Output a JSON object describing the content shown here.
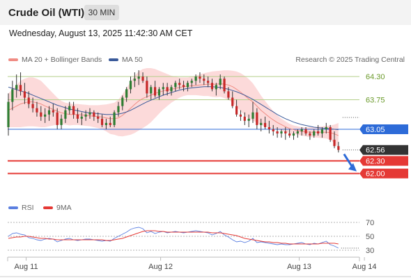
{
  "header": {
    "title": "Crude Oil (WTI)",
    "timeframe": "30 MIN",
    "datetime": "Wednesday, August 13, 2025 11:42:30 AM CET"
  },
  "legend": {
    "ma20_label": "MA 20 + Bollinger Bands",
    "ma50_label": "MA 50",
    "copyright": "Research © 2025 Trading Central",
    "rsi_label": "RSI",
    "rsi_ma_label": "9MA"
  },
  "colors": {
    "ma20": "#f08c84",
    "ma50": "#3a5a9a",
    "band_fill": "#fbd4d4",
    "resistance": "#b4cf8a",
    "pivot": "#2d6bd8",
    "support": "#e53935",
    "last_price": "#333333",
    "rsi": "#5b7fe0",
    "rsi_ma": "#e53935",
    "arrow": "#2d6bd8"
  },
  "chart_data": [
    {
      "type": "candlestick",
      "x_labels": [
        "Aug 11",
        "Aug 12",
        "Aug 13",
        "Aug 14"
      ],
      "x_label_positions": [
        3,
        36,
        70,
        86
      ],
      "ylim": [
        61.5,
        64.55
      ],
      "ohlc": [
        [
          63.1,
          63.9,
          62.9,
          63.7
        ],
        [
          63.7,
          64.2,
          63.5,
          64.0
        ],
        [
          64.0,
          64.35,
          63.8,
          64.1
        ],
        [
          64.1,
          64.4,
          63.85,
          63.95
        ],
        [
          63.95,
          64.15,
          63.65,
          63.8
        ],
        [
          63.8,
          63.95,
          63.55,
          63.65
        ],
        [
          63.65,
          63.8,
          63.45,
          63.55
        ],
        [
          63.55,
          63.7,
          63.35,
          63.45
        ],
        [
          63.45,
          63.6,
          63.25,
          63.35
        ],
        [
          63.35,
          63.55,
          63.2,
          63.4
        ],
        [
          63.4,
          63.6,
          63.25,
          63.5
        ],
        [
          63.5,
          63.65,
          63.35,
          63.45
        ],
        [
          63.45,
          63.55,
          63.05,
          63.15
        ],
        [
          63.15,
          63.4,
          63.05,
          63.3
        ],
        [
          63.3,
          63.6,
          63.2,
          63.5
        ],
        [
          63.5,
          63.7,
          63.4,
          63.6
        ],
        [
          63.6,
          63.7,
          63.3,
          63.4
        ],
        [
          63.4,
          63.55,
          63.2,
          63.3
        ],
        [
          63.3,
          63.45,
          63.15,
          63.35
        ],
        [
          63.35,
          63.5,
          63.25,
          63.4
        ],
        [
          63.4,
          63.55,
          63.3,
          63.45
        ],
        [
          63.45,
          63.5,
          63.25,
          63.35
        ],
        [
          63.35,
          63.45,
          63.2,
          63.3
        ],
        [
          63.3,
          63.4,
          63.1,
          63.15
        ],
        [
          63.15,
          63.3,
          63.05,
          63.2
        ],
        [
          63.2,
          63.35,
          63.1,
          63.15
        ],
        [
          63.15,
          63.5,
          63.1,
          63.45
        ],
        [
          63.45,
          63.7,
          63.35,
          63.6
        ],
        [
          63.6,
          63.85,
          63.5,
          63.8
        ],
        [
          63.8,
          64.05,
          63.7,
          64.0
        ],
        [
          64.0,
          64.3,
          63.9,
          64.2
        ],
        [
          64.2,
          64.4,
          64.05,
          64.25
        ],
        [
          64.25,
          64.45,
          64.1,
          64.3
        ],
        [
          64.3,
          64.4,
          64.15,
          64.2
        ],
        [
          64.2,
          64.3,
          63.8,
          63.9
        ],
        [
          63.9,
          64.1,
          63.75,
          64.05
        ],
        [
          64.05,
          64.2,
          63.8,
          63.85
        ],
        [
          63.85,
          64.05,
          63.75,
          64.0
        ],
        [
          64.0,
          64.15,
          63.85,
          64.05
        ],
        [
          64.05,
          64.15,
          63.85,
          63.95
        ],
        [
          63.95,
          64.1,
          63.85,
          64.05
        ],
        [
          64.05,
          64.2,
          63.95,
          64.15
        ],
        [
          64.15,
          64.25,
          64.0,
          64.1
        ],
        [
          64.1,
          64.2,
          63.95,
          64.05
        ],
        [
          64.05,
          64.2,
          63.95,
          64.15
        ],
        [
          64.15,
          64.25,
          64.05,
          64.2
        ],
        [
          64.2,
          64.35,
          64.1,
          64.3
        ],
        [
          64.3,
          64.4,
          64.15,
          64.25
        ],
        [
          64.25,
          64.35,
          64.1,
          64.2
        ],
        [
          64.2,
          64.3,
          64.05,
          64.15
        ],
        [
          64.15,
          64.25,
          63.95,
          64.0
        ],
        [
          64.0,
          64.15,
          63.85,
          64.1
        ],
        [
          64.1,
          64.35,
          64.0,
          64.25
        ],
        [
          64.25,
          64.3,
          63.9,
          63.95
        ],
        [
          63.95,
          64.05,
          63.75,
          63.8
        ],
        [
          63.8,
          63.95,
          63.55,
          63.6
        ],
        [
          63.6,
          63.75,
          63.35,
          63.4
        ],
        [
          63.4,
          63.5,
          63.25,
          63.35
        ],
        [
          63.35,
          63.45,
          63.15,
          63.25
        ],
        [
          63.25,
          63.4,
          63.1,
          63.3
        ],
        [
          63.3,
          63.7,
          63.2,
          63.45
        ],
        [
          63.45,
          63.55,
          63.05,
          63.15
        ],
        [
          63.15,
          63.3,
          63.0,
          63.2
        ],
        [
          63.2,
          63.35,
          63.05,
          63.1
        ],
        [
          63.1,
          63.25,
          62.95,
          63.05
        ],
        [
          63.05,
          63.15,
          62.9,
          63.0
        ],
        [
          63.0,
          63.1,
          62.85,
          62.95
        ],
        [
          62.95,
          63.05,
          62.85,
          63.0
        ],
        [
          63.0,
          63.1,
          62.8,
          62.95
        ],
        [
          62.95,
          63.05,
          62.85,
          62.9
        ],
        [
          62.9,
          63.0,
          62.8,
          62.95
        ],
        [
          62.95,
          63.05,
          62.85,
          63.0
        ],
        [
          63.0,
          63.1,
          62.9,
          63.05
        ],
        [
          63.05,
          63.1,
          62.9,
          62.95
        ],
        [
          62.95,
          63.0,
          62.8,
          62.9
        ],
        [
          62.9,
          63.05,
          62.85,
          63.0
        ],
        [
          63.0,
          63.15,
          62.9,
          62.95
        ],
        [
          62.95,
          63.1,
          62.85,
          63.05
        ],
        [
          63.05,
          63.2,
          62.95,
          63.1
        ],
        [
          63.1,
          63.15,
          62.75,
          62.8
        ],
        [
          62.8,
          63.0,
          62.6,
          62.65
        ],
        [
          62.65,
          62.75,
          62.5,
          62.56
        ]
      ],
      "ma20": [
        63.5,
        63.55,
        63.6,
        63.65,
        63.68,
        63.7,
        63.7,
        63.68,
        63.65,
        63.6,
        63.56,
        63.52,
        63.48,
        63.44,
        63.42,
        63.4,
        63.4,
        63.4,
        63.39,
        63.38,
        63.37,
        63.36,
        63.35,
        63.34,
        63.32,
        63.3,
        63.3,
        63.32,
        63.38,
        63.46,
        63.55,
        63.64,
        63.72,
        63.78,
        63.82,
        63.86,
        63.9,
        63.93,
        63.96,
        63.98,
        64.0,
        64.02,
        64.04,
        64.06,
        64.07,
        64.08,
        64.09,
        64.1,
        64.11,
        64.12,
        64.12,
        64.12,
        64.13,
        64.12,
        64.1,
        64.06,
        64.0,
        63.93,
        63.85,
        63.77,
        63.7,
        63.6,
        63.5,
        63.42,
        63.34,
        63.27,
        63.21,
        63.16,
        63.11,
        63.07,
        63.04,
        63.02,
        63.0,
        62.99,
        62.98,
        62.98,
        62.98,
        62.98,
        62.98,
        62.97,
        62.94,
        62.9
      ],
      "band_upper": [
        63.9,
        64.0,
        64.1,
        64.2,
        64.25,
        64.28,
        64.28,
        64.25,
        64.2,
        64.1,
        64.0,
        63.9,
        63.8,
        63.72,
        63.68,
        63.66,
        63.65,
        63.65,
        63.64,
        63.63,
        63.62,
        63.62,
        63.62,
        63.63,
        63.64,
        63.66,
        63.68,
        63.75,
        63.88,
        64.02,
        64.18,
        64.32,
        64.42,
        64.48,
        64.5,
        64.5,
        64.48,
        64.44,
        64.4,
        64.36,
        64.32,
        64.3,
        64.28,
        64.28,
        64.28,
        64.3,
        64.32,
        64.35,
        64.38,
        64.4,
        64.42,
        64.43,
        64.44,
        64.45,
        64.45,
        64.44,
        64.42,
        64.38,
        64.32,
        64.24,
        64.14,
        64.0,
        63.85,
        63.72,
        63.6,
        63.48,
        63.38,
        63.3,
        63.24,
        63.18,
        63.14,
        63.12,
        63.1,
        63.1,
        63.1,
        63.1,
        63.11,
        63.12,
        63.13,
        63.14,
        63.16,
        63.2
      ],
      "band_lower": [
        63.1,
        63.1,
        63.1,
        63.1,
        63.11,
        63.12,
        63.12,
        63.11,
        63.1,
        63.1,
        63.12,
        63.14,
        63.16,
        63.16,
        63.16,
        63.14,
        63.15,
        63.15,
        63.14,
        63.13,
        63.12,
        63.1,
        63.08,
        63.05,
        63.0,
        62.94,
        62.92,
        62.89,
        62.88,
        62.9,
        62.92,
        62.96,
        63.02,
        63.08,
        63.14,
        63.22,
        63.32,
        63.42,
        63.52,
        63.6,
        63.68,
        63.74,
        63.8,
        63.84,
        63.86,
        63.86,
        63.86,
        63.85,
        63.84,
        63.84,
        63.82,
        63.81,
        63.82,
        63.79,
        63.75,
        63.68,
        63.58,
        63.48,
        63.38,
        63.3,
        63.26,
        63.2,
        63.15,
        63.12,
        63.08,
        63.06,
        63.04,
        63.02,
        62.98,
        62.96,
        62.94,
        62.92,
        62.9,
        62.88,
        62.86,
        62.86,
        62.85,
        62.84,
        62.83,
        62.8,
        62.72,
        62.6
      ],
      "ma50": [
        64.05,
        64.02,
        63.99,
        63.96,
        63.93,
        63.9,
        63.86,
        63.82,
        63.78,
        63.74,
        63.7,
        63.66,
        63.62,
        63.59,
        63.56,
        63.53,
        63.51,
        63.49,
        63.47,
        63.45,
        63.44,
        63.43,
        63.42,
        63.41,
        63.4,
        63.4,
        63.4,
        63.41,
        63.43,
        63.46,
        63.5,
        63.55,
        63.6,
        63.65,
        63.7,
        63.74,
        63.78,
        63.82,
        63.86,
        63.89,
        63.92,
        63.95,
        63.98,
        64.0,
        64.02,
        64.03,
        64.04,
        64.05,
        64.06,
        64.06,
        64.06,
        64.05,
        64.04,
        64.02,
        64.0,
        63.97,
        63.94,
        63.9,
        63.86,
        63.81,
        63.76,
        63.7,
        63.64,
        63.58,
        63.52,
        63.46,
        63.4,
        63.35,
        63.3,
        63.26,
        63.22,
        63.19,
        63.16,
        63.14,
        63.12,
        63.1,
        63.09,
        63.08,
        63.07,
        63.06,
        63.05,
        63.04
      ],
      "levels": [
        {
          "value": 64.3,
          "label": "64.30",
          "kind": "resistance"
        },
        {
          "value": 63.75,
          "label": "63.75",
          "kind": "resistance"
        },
        {
          "value": 63.05,
          "label": "63.05",
          "kind": "pivot"
        },
        {
          "value": 62.56,
          "label": "62.56",
          "kind": "last"
        },
        {
          "value": 62.3,
          "label": "62.30",
          "kind": "support"
        },
        {
          "value": 62.0,
          "label": "62.00",
          "kind": "support"
        }
      ],
      "projection_arrow": {
        "from": 62.56,
        "to": 62.05
      }
    },
    {
      "type": "line",
      "title": "RSI",
      "ylim": [
        28,
        72
      ],
      "y_ticks": [
        70,
        50,
        30
      ],
      "y_tick_labels": [
        "70",
        "50",
        "30"
      ],
      "rsi": [
        50,
        54,
        55,
        53,
        52,
        48,
        47,
        45,
        44,
        46,
        47,
        46,
        42,
        44,
        46,
        47,
        45,
        44,
        45,
        46,
        46,
        45,
        44,
        43,
        44,
        43,
        47,
        50,
        53,
        56,
        60,
        62,
        63,
        61,
        55,
        57,
        54,
        56,
        57,
        55,
        56,
        57,
        56,
        55,
        56,
        57,
        58,
        57,
        56,
        55,
        52,
        54,
        57,
        52,
        49,
        45,
        42,
        43,
        41,
        43,
        47,
        41,
        42,
        41,
        40,
        39,
        38,
        39,
        38,
        38,
        39,
        40,
        41,
        39,
        38,
        40,
        39,
        41,
        43,
        38,
        36,
        33
      ],
      "rsi_ma": [
        47,
        48,
        49,
        49,
        50,
        50,
        49,
        48,
        47,
        47,
        46,
        46,
        45,
        45,
        45,
        45,
        45,
        45,
        45,
        45,
        45,
        45,
        45,
        45,
        44,
        44,
        45,
        46,
        47,
        49,
        51,
        53,
        55,
        57,
        58,
        58,
        58,
        57,
        57,
        56,
        56,
        56,
        56,
        56,
        56,
        56,
        56,
        56,
        56,
        56,
        55,
        55,
        55,
        54,
        53,
        52,
        51,
        49,
        47,
        46,
        45,
        44,
        43,
        42,
        42,
        41,
        41,
        40,
        40,
        39,
        39,
        39,
        39,
        39,
        39,
        39,
        39,
        40,
        40,
        40,
        40,
        39
      ]
    }
  ]
}
